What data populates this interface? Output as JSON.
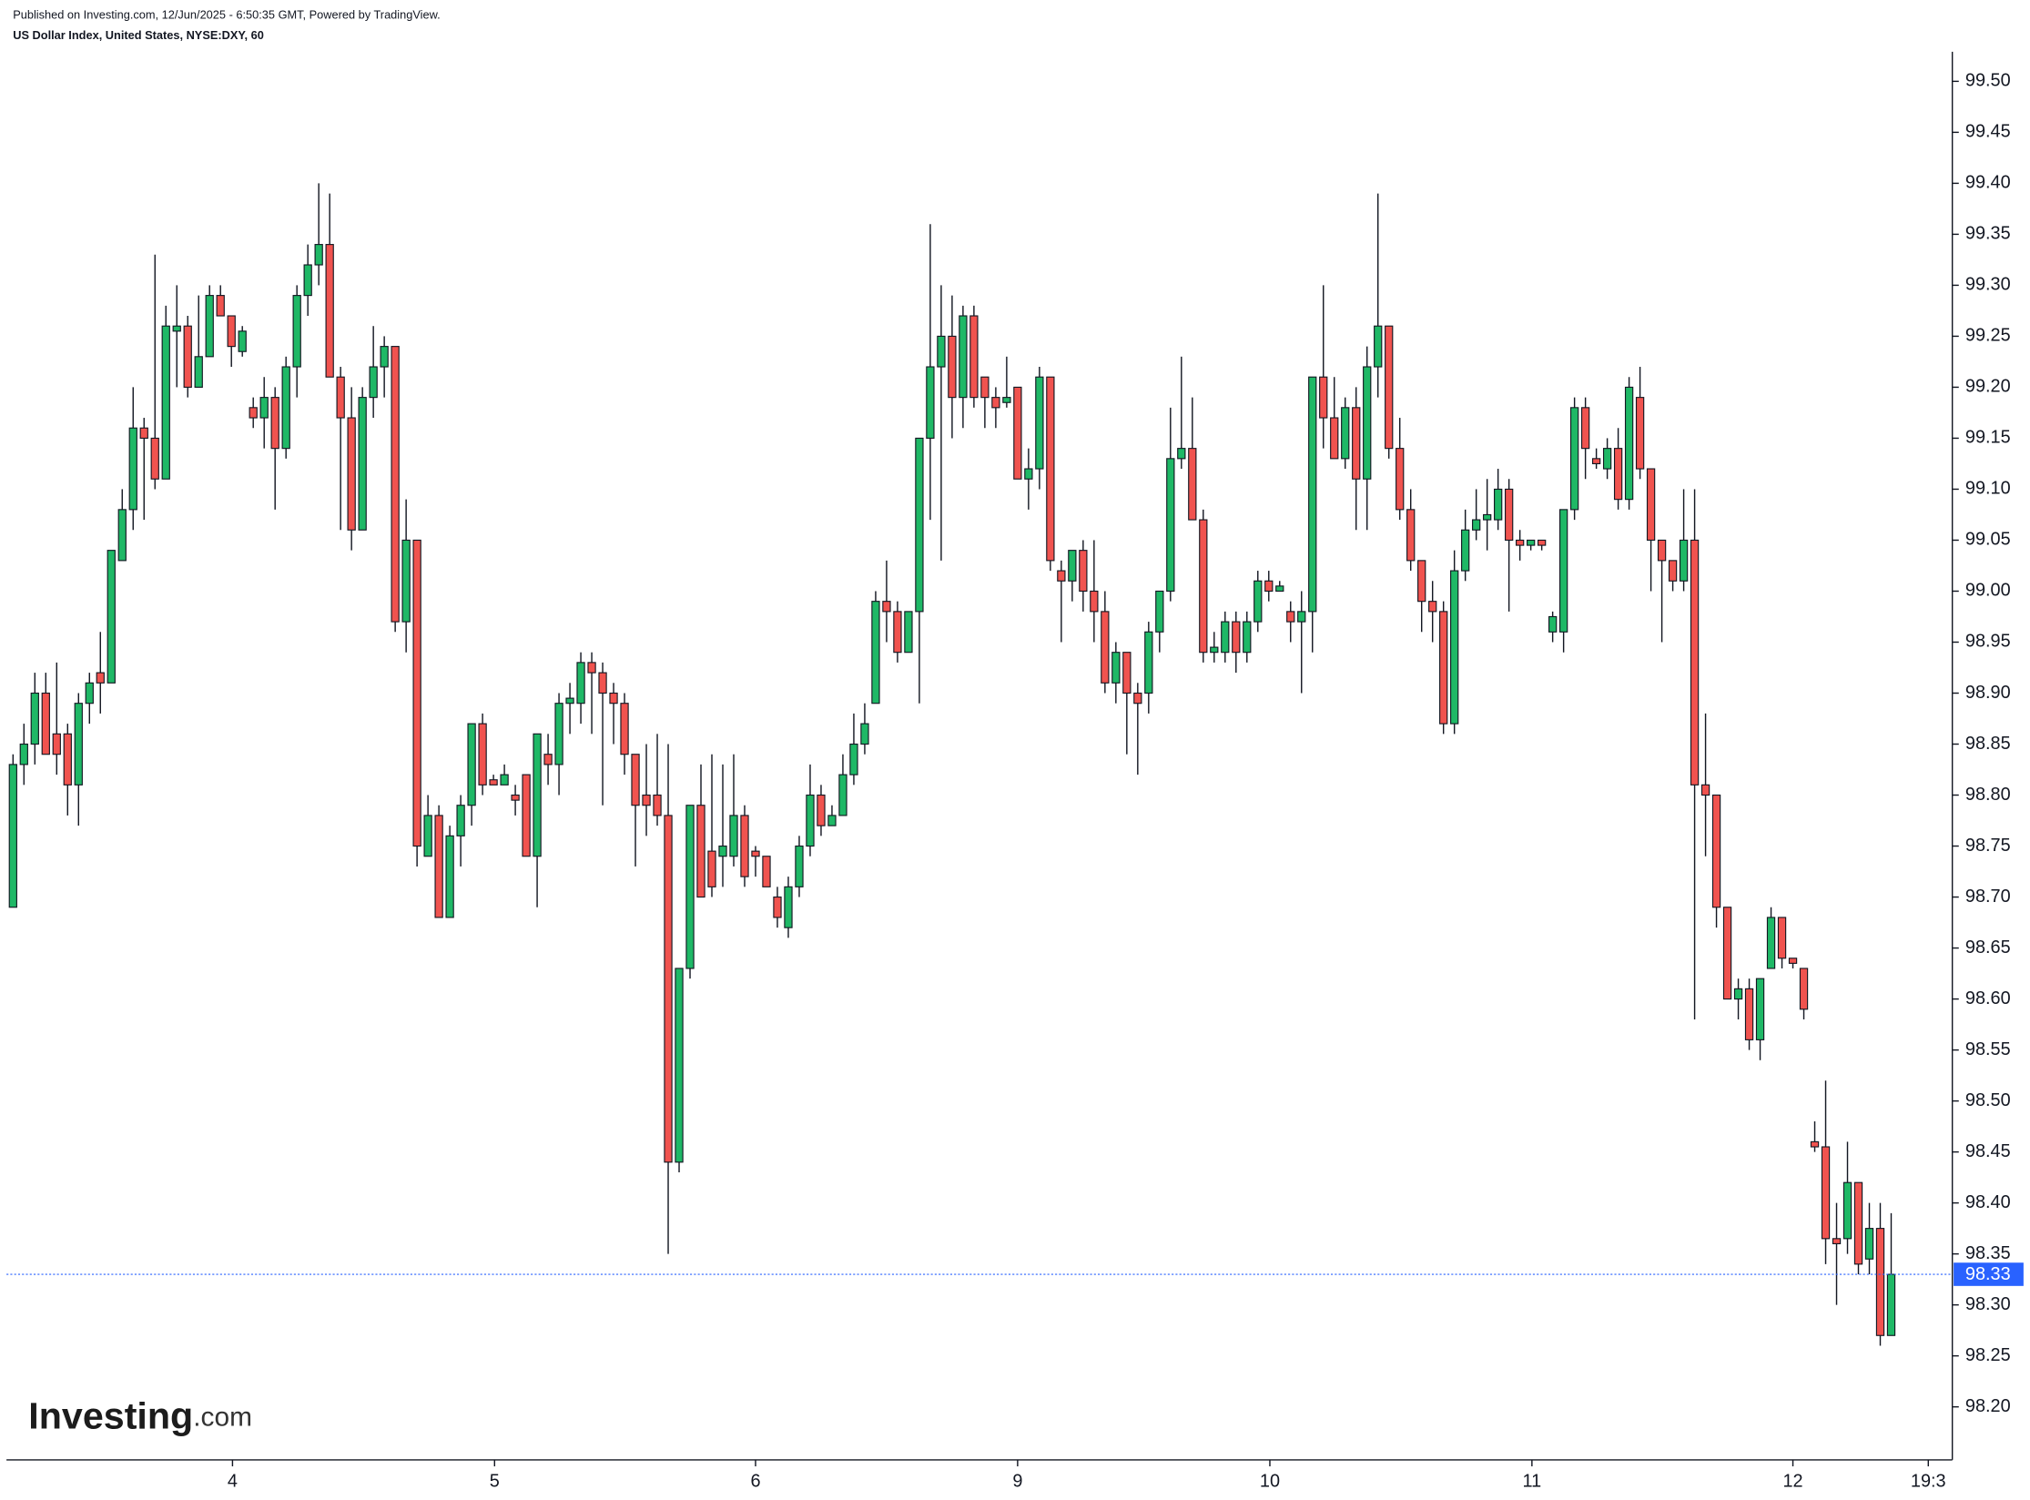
{
  "chart_data": {
    "type": "candlestick",
    "source_note": "Published on Investing.com, 12/Jun/2025 - 6:50:35 GMT, Powered by TradingView.",
    "title": "US Dollar Index, United States, NYSE:DXY, 60",
    "watermark": "Investing",
    "watermark_suffix": ".com",
    "up_color": "#1fb866",
    "down_color": "#f0534f",
    "last_price": {
      "value": 98.33,
      "label": "98.33"
    },
    "last_price_color": "#2962ff",
    "xlim": [
      -0.6,
      177.6
    ],
    "xticks": [
      {
        "value": 20.1,
        "label": "4"
      },
      {
        "value": 44.1,
        "label": "5"
      },
      {
        "value": 68.0,
        "label": "6"
      },
      {
        "value": 92.0,
        "label": "9"
      },
      {
        "value": 115.1,
        "label": "10"
      },
      {
        "value": 139.1,
        "label": "11"
      },
      {
        "value": 163.0,
        "label": "12"
      },
      {
        "value": 175.4,
        "label": "19:3"
      }
    ],
    "ylim": [
      98.148,
      99.529
    ],
    "yticks": [
      {
        "value": 98.2,
        "label": "98.20"
      },
      98.25,
      {
        "value": 98.3,
        "label": "98.30"
      },
      98.35,
      {
        "value": 98.4,
        "label": "98.40"
      },
      98.45,
      {
        "value": 98.5,
        "label": "98.50"
      },
      98.55,
      {
        "value": 98.6,
        "label": "98.60"
      },
      98.65,
      {
        "value": 98.7,
        "label": "98.70"
      },
      98.75,
      {
        "value": 98.8,
        "label": "98.80"
      },
      98.85,
      {
        "value": 98.9,
        "label": "98.90"
      },
      98.95,
      {
        "value": 99.0,
        "label": "99.00"
      },
      99.05,
      {
        "value": 99.1,
        "label": "99.10"
      },
      99.15,
      {
        "value": 99.2,
        "label": "99.20"
      },
      99.25,
      {
        "value": 99.3,
        "label": "99.30"
      },
      99.35,
      {
        "value": 99.4,
        "label": "99.40"
      },
      99.45,
      {
        "value": 99.5,
        "label": "99.50"
      }
    ],
    "x": [
      0,
      1,
      2,
      3,
      4,
      5,
      6,
      7,
      8,
      9,
      10,
      11,
      12,
      13,
      14,
      15,
      16,
      17,
      18,
      19,
      20,
      21,
      22,
      23,
      24,
      25,
      26,
      27,
      28,
      29,
      30,
      31,
      32,
      33,
      34,
      35,
      36,
      37,
      38,
      39,
      40,
      41,
      42,
      43,
      44,
      45,
      46,
      47,
      48,
      49,
      50,
      51,
      52,
      53,
      54,
      55,
      56,
      57,
      58,
      59,
      60,
      61,
      62,
      63,
      64,
      65,
      66,
      67,
      68,
      69,
      70,
      71,
      72,
      73,
      74,
      75,
      76,
      77,
      78,
      79,
      80,
      81,
      82,
      83,
      84,
      85,
      86,
      87,
      88,
      89,
      90,
      91,
      92,
      93,
      94,
      95,
      96,
      97,
      98,
      99,
      100,
      101,
      102,
      103,
      104,
      105,
      106,
      107,
      108,
      109,
      110,
      111,
      112,
      113,
      114,
      115,
      116,
      117,
      118,
      119,
      120,
      121,
      122,
      123,
      124,
      125,
      126,
      127,
      128,
      129,
      130,
      131,
      132,
      133,
      134,
      135,
      136,
      137,
      138,
      139,
      140,
      141,
      142,
      143,
      144,
      145,
      146,
      147,
      148,
      149,
      150,
      151,
      152,
      153,
      154,
      155,
      156,
      157,
      158,
      159,
      160,
      161,
      162,
      163,
      164,
      165,
      166,
      167,
      168,
      169,
      170,
      171,
      172
    ],
    "open": [
      98.69,
      98.83,
      98.85,
      98.9,
      98.86,
      98.86,
      98.81,
      98.89,
      98.92,
      98.91,
      99.03,
      99.08,
      99.16,
      99.15,
      99.11,
      99.255,
      99.26,
      99.2,
      99.23,
      99.29,
      99.27,
      99.235,
      99.18,
      99.17,
      99.19,
      99.14,
      99.22,
      99.29,
      99.32,
      99.34,
      99.21,
      99.17,
      99.06,
      99.19,
      99.22,
      99.24,
      98.97,
      99.05,
      98.74,
      98.78,
      98.68,
      98.76,
      98.79,
      98.87,
      98.815,
      98.81,
      98.8,
      98.82,
      98.74,
      98.84,
      98.83,
      98.89,
      98.89,
      98.93,
      98.92,
      98.9,
      98.89,
      98.84,
      98.8,
      98.8,
      98.78,
      98.44,
      98.63,
      98.79,
      98.745,
      98.74,
      98.74,
      98.78,
      98.745,
      98.74,
      98.7,
      98.67,
      98.71,
      98.75,
      98.8,
      98.77,
      98.78,
      98.82,
      98.85,
      98.89,
      98.99,
      98.98,
      98.94,
      98.98,
      99.15,
      99.22,
      99.25,
      99.19,
      99.27,
      99.21,
      99.19,
      99.185,
      99.2,
      99.11,
      99.12,
      99.21,
      99.02,
      99.01,
      99.04,
      99.0,
      98.98,
      98.91,
      98.94,
      98.9,
      98.9,
      98.96,
      99.0,
      99.13,
      99.14,
      99.07,
      98.94,
      98.94,
      98.97,
      98.94,
      98.97,
      99.01,
      99.0,
      98.98,
      98.97,
      98.98,
      99.21,
      99.17,
      99.13,
      99.18,
      99.11,
      99.22,
      99.26,
      99.14,
      99.08,
      99.03,
      98.99,
      98.98,
      98.87,
      99.02,
      99.06,
      99.07,
      99.07,
      99.1,
      99.05,
      99.045,
      99.05,
      98.96,
      98.96,
      99.08,
      99.18,
      99.13,
      99.12,
      99.14,
      99.09,
      99.19,
      99.12,
      99.05,
      99.03,
      99.01,
      99.05,
      98.81,
      98.8,
      98.69,
      98.6,
      98.61,
      98.56,
      98.63,
      98.68,
      98.64,
      98.63,
      98.46,
      98.455,
      98.365,
      98.365,
      98.42,
      98.345,
      98.375,
      98.27
    ],
    "high": [
      98.84,
      98.87,
      98.92,
      98.92,
      98.93,
      98.87,
      98.9,
      98.92,
      98.96,
      99.04,
      99.1,
      99.2,
      99.17,
      99.33,
      99.28,
      99.3,
      99.27,
      99.29,
      99.3,
      99.3,
      99.27,
      99.26,
      99.19,
      99.21,
      99.2,
      99.23,
      99.3,
      99.34,
      99.4,
      99.39,
      99.22,
      99.2,
      99.2,
      99.26,
      99.25,
      99.24,
      99.09,
      99.05,
      98.8,
      98.79,
      98.77,
      98.8,
      98.87,
      98.88,
      98.82,
      98.83,
      98.81,
      98.82,
      98.86,
      98.86,
      98.9,
      98.91,
      98.94,
      98.94,
      98.93,
      98.91,
      98.9,
      98.84,
      98.85,
      98.86,
      98.85,
      98.63,
      98.79,
      98.83,
      98.84,
      98.83,
      98.84,
      98.79,
      98.75,
      98.74,
      98.71,
      98.72,
      98.76,
      98.83,
      98.81,
      98.79,
      98.84,
      98.88,
      98.89,
      99.0,
      99.03,
      98.99,
      98.98,
      99.15,
      99.36,
      99.3,
      99.29,
      99.28,
      99.28,
      99.21,
      99.2,
      99.23,
      99.2,
      99.14,
      99.22,
      99.21,
      99.03,
      99.04,
      99.05,
      99.05,
      99.0,
      98.95,
      98.94,
      98.91,
      98.97,
      99.0,
      99.18,
      99.23,
      99.19,
      99.08,
      98.96,
      98.98,
      98.98,
      98.98,
      99.02,
      99.02,
      99.01,
      98.99,
      99.0,
      99.21,
      99.3,
      99.21,
      99.19,
      99.2,
      99.24,
      99.39,
      99.26,
      99.17,
      99.1,
      99.03,
      99.01,
      98.99,
      99.04,
      99.08,
      99.1,
      99.11,
      99.12,
      99.11,
      99.06,
      99.05,
      99.05,
      98.98,
      99.08,
      99.19,
      99.19,
      99.14,
      99.15,
      99.16,
      99.21,
      99.22,
      99.12,
      99.05,
      99.03,
      99.1,
      99.1,
      98.88,
      98.8,
      98.69,
      98.62,
      98.62,
      98.62,
      98.69,
      98.68,
      98.64,
      98.63,
      98.48,
      98.52,
      98.4,
      98.46,
      98.42,
      98.4,
      98.4,
      98.39
    ],
    "low": [
      98.69,
      98.81,
      98.83,
      98.84,
      98.82,
      98.78,
      98.77,
      98.87,
      98.88,
      98.91,
      99.03,
      99.06,
      99.07,
      99.1,
      99.11,
      99.2,
      99.19,
      99.2,
      99.23,
      99.27,
      99.22,
      99.23,
      99.16,
      99.14,
      99.08,
      99.13,
      99.19,
      99.27,
      99.3,
      99.21,
      99.06,
      99.04,
      99.06,
      99.17,
      99.19,
      98.96,
      98.94,
      98.73,
      98.74,
      98.68,
      98.68,
      98.73,
      98.77,
      98.8,
      98.81,
      98.81,
      98.78,
      98.74,
      98.69,
      98.81,
      98.8,
      98.86,
      98.87,
      98.86,
      98.79,
      98.85,
      98.82,
      98.73,
      98.76,
      98.77,
      98.35,
      98.43,
      98.62,
      98.7,
      98.7,
      98.71,
      98.73,
      98.71,
      98.72,
      98.71,
      98.67,
      98.66,
      98.7,
      98.74,
      98.76,
      98.77,
      98.78,
      98.81,
      98.84,
      98.89,
      98.95,
      98.93,
      98.94,
      98.89,
      99.07,
      99.03,
      99.15,
      99.16,
      99.18,
      99.16,
      99.16,
      99.18,
      99.11,
      99.08,
      99.1,
      99.02,
      98.95,
      98.99,
      98.98,
      98.95,
      98.9,
      98.89,
      98.84,
      98.82,
      98.88,
      98.94,
      98.99,
      99.12,
      99.07,
      98.93,
      98.93,
      98.93,
      98.92,
      98.93,
      98.96,
      98.99,
      99.0,
      98.95,
      98.9,
      98.94,
      99.14,
      99.13,
      99.12,
      99.06,
      99.06,
      99.19,
      99.13,
      99.07,
      99.02,
      98.96,
      98.95,
      98.86,
      98.86,
      99.01,
      99.05,
      99.04,
      99.06,
      98.98,
      99.03,
      99.04,
      99.04,
      98.95,
      98.94,
      99.07,
      99.11,
      99.12,
      99.11,
      99.08,
      99.08,
      99.11,
      99.0,
      98.95,
      99.0,
      99.0,
      98.58,
      98.74,
      98.67,
      98.6,
      98.58,
      98.55,
      98.54,
      98.63,
      98.63,
      98.63,
      98.58,
      98.45,
      98.34,
      98.3,
      98.35,
      98.33,
      98.33,
      98.26,
      98.27
    ],
    "close": [
      98.83,
      98.85,
      98.9,
      98.84,
      98.84,
      98.81,
      98.89,
      98.91,
      98.91,
      99.04,
      99.08,
      99.16,
      99.15,
      99.11,
      99.26,
      99.26,
      99.2,
      99.23,
      99.29,
      99.27,
      99.24,
      99.255,
      99.17,
      99.19,
      99.14,
      99.22,
      99.29,
      99.32,
      99.34,
      99.21,
      99.17,
      99.06,
      99.19,
      99.22,
      99.24,
      98.97,
      99.05,
      98.75,
      98.78,
      98.68,
      98.76,
      98.79,
      98.87,
      98.81,
      98.81,
      98.82,
      98.795,
      98.74,
      98.86,
      98.83,
      98.89,
      98.895,
      98.93,
      98.92,
      98.9,
      98.89,
      98.84,
      98.79,
      98.79,
      98.78,
      98.44,
      98.63,
      98.79,
      98.7,
      98.71,
      98.75,
      98.78,
      98.72,
      98.74,
      98.71,
      98.68,
      98.71,
      98.75,
      98.8,
      98.77,
      98.78,
      98.82,
      98.85,
      98.87,
      98.99,
      98.98,
      98.94,
      98.98,
      99.15,
      99.22,
      99.25,
      99.19,
      99.27,
      99.19,
      99.19,
      99.18,
      99.19,
      99.11,
      99.12,
      99.21,
      99.03,
      99.01,
      99.04,
      99.0,
      98.98,
      98.91,
      98.94,
      98.9,
      98.89,
      98.96,
      99.0,
      99.13,
      99.14,
      99.07,
      98.94,
      98.945,
      98.97,
      98.94,
      98.97,
      99.01,
      99.0,
      99.005,
      98.97,
      98.98,
      99.21,
      99.17,
      99.13,
      99.18,
      99.11,
      99.22,
      99.26,
      99.14,
      99.08,
      99.03,
      98.99,
      98.98,
      98.87,
      99.02,
      99.06,
      99.07,
      99.075,
      99.1,
      99.05,
      99.045,
      99.05,
      99.045,
      98.975,
      99.08,
      99.18,
      99.14,
      99.125,
      99.14,
      99.09,
      99.2,
      99.12,
      99.05,
      99.03,
      99.01,
      99.05,
      98.81,
      98.8,
      98.69,
      98.6,
      98.61,
      98.56,
      98.62,
      98.68,
      98.64,
      98.635,
      98.59,
      98.455,
      98.365,
      98.36,
      98.42,
      98.34,
      98.375,
      98.27,
      98.33
    ]
  }
}
